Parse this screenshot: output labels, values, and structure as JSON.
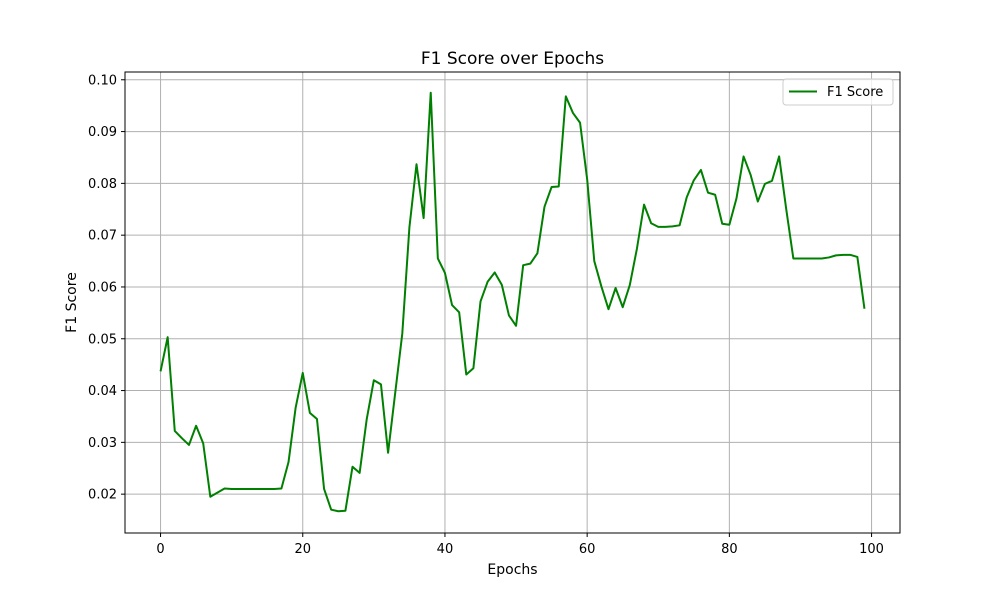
{
  "chart_data": {
    "type": "line",
    "title": "F1 Score over Epochs",
    "xlabel": "Epochs",
    "ylabel": "F1 Score",
    "xlim": [
      -5,
      104
    ],
    "ylim": [
      0.0125,
      0.1015
    ],
    "xticks": [
      0,
      20,
      40,
      60,
      80,
      100
    ],
    "yticks": [
      0.02,
      0.03,
      0.04,
      0.05,
      0.06,
      0.07,
      0.08,
      0.09,
      0.1
    ],
    "grid": true,
    "legend_position": "top-right",
    "series": [
      {
        "name": "F1 Score",
        "color": "#008000",
        "x": [
          0,
          1,
          2,
          3,
          4,
          5,
          6,
          7,
          8,
          9,
          10,
          11,
          12,
          13,
          14,
          15,
          16,
          17,
          18,
          19,
          20,
          21,
          22,
          23,
          24,
          25,
          26,
          27,
          28,
          29,
          30,
          31,
          32,
          33,
          34,
          35,
          36,
          37,
          38,
          39,
          40,
          41,
          42,
          43,
          44,
          45,
          46,
          47,
          48,
          49,
          50,
          51,
          52,
          53,
          54,
          55,
          56,
          57,
          58,
          59,
          60,
          61,
          62,
          63,
          64,
          65,
          66,
          67,
          68,
          69,
          70,
          71,
          72,
          73,
          74,
          75,
          76,
          77,
          78,
          79,
          80,
          81,
          82,
          83,
          84,
          85,
          86,
          87,
          88,
          89,
          90,
          91,
          92,
          93,
          94,
          95,
          96,
          97,
          98,
          99
        ],
        "values": [
          0.0437,
          0.0503,
          0.0322,
          0.0308,
          0.0295,
          0.0332,
          0.0298,
          0.0195,
          0.0203,
          0.0211,
          0.021,
          0.021,
          0.021,
          0.021,
          0.021,
          0.021,
          0.021,
          0.0211,
          0.0262,
          0.0367,
          0.0434,
          0.0357,
          0.0345,
          0.021,
          0.017,
          0.0167,
          0.0168,
          0.0253,
          0.0241,
          0.0345,
          0.042,
          0.0412,
          0.028,
          0.0395,
          0.051,
          0.0715,
          0.0837,
          0.0733,
          0.0975,
          0.0655,
          0.0627,
          0.0565,
          0.0551,
          0.0431,
          0.0443,
          0.0572,
          0.061,
          0.0628,
          0.0604,
          0.0545,
          0.0525,
          0.0642,
          0.0645,
          0.0665,
          0.0755,
          0.0793,
          0.0794,
          0.0968,
          0.0936,
          0.0917,
          0.0808,
          0.065,
          0.0601,
          0.0557,
          0.0598,
          0.0561,
          0.0604,
          0.0674,
          0.0759,
          0.0723,
          0.0716,
          0.0716,
          0.0717,
          0.0719,
          0.0773,
          0.0806,
          0.0826,
          0.0782,
          0.0778,
          0.0722,
          0.072,
          0.0771,
          0.0852,
          0.0816,
          0.0765,
          0.0799,
          0.0805,
          0.0852,
          0.075,
          0.0655,
          0.0655,
          0.0655,
          0.0655,
          0.0655,
          0.0657,
          0.0661,
          0.0662,
          0.0662,
          0.0658,
          0.0558
        ]
      }
    ]
  }
}
